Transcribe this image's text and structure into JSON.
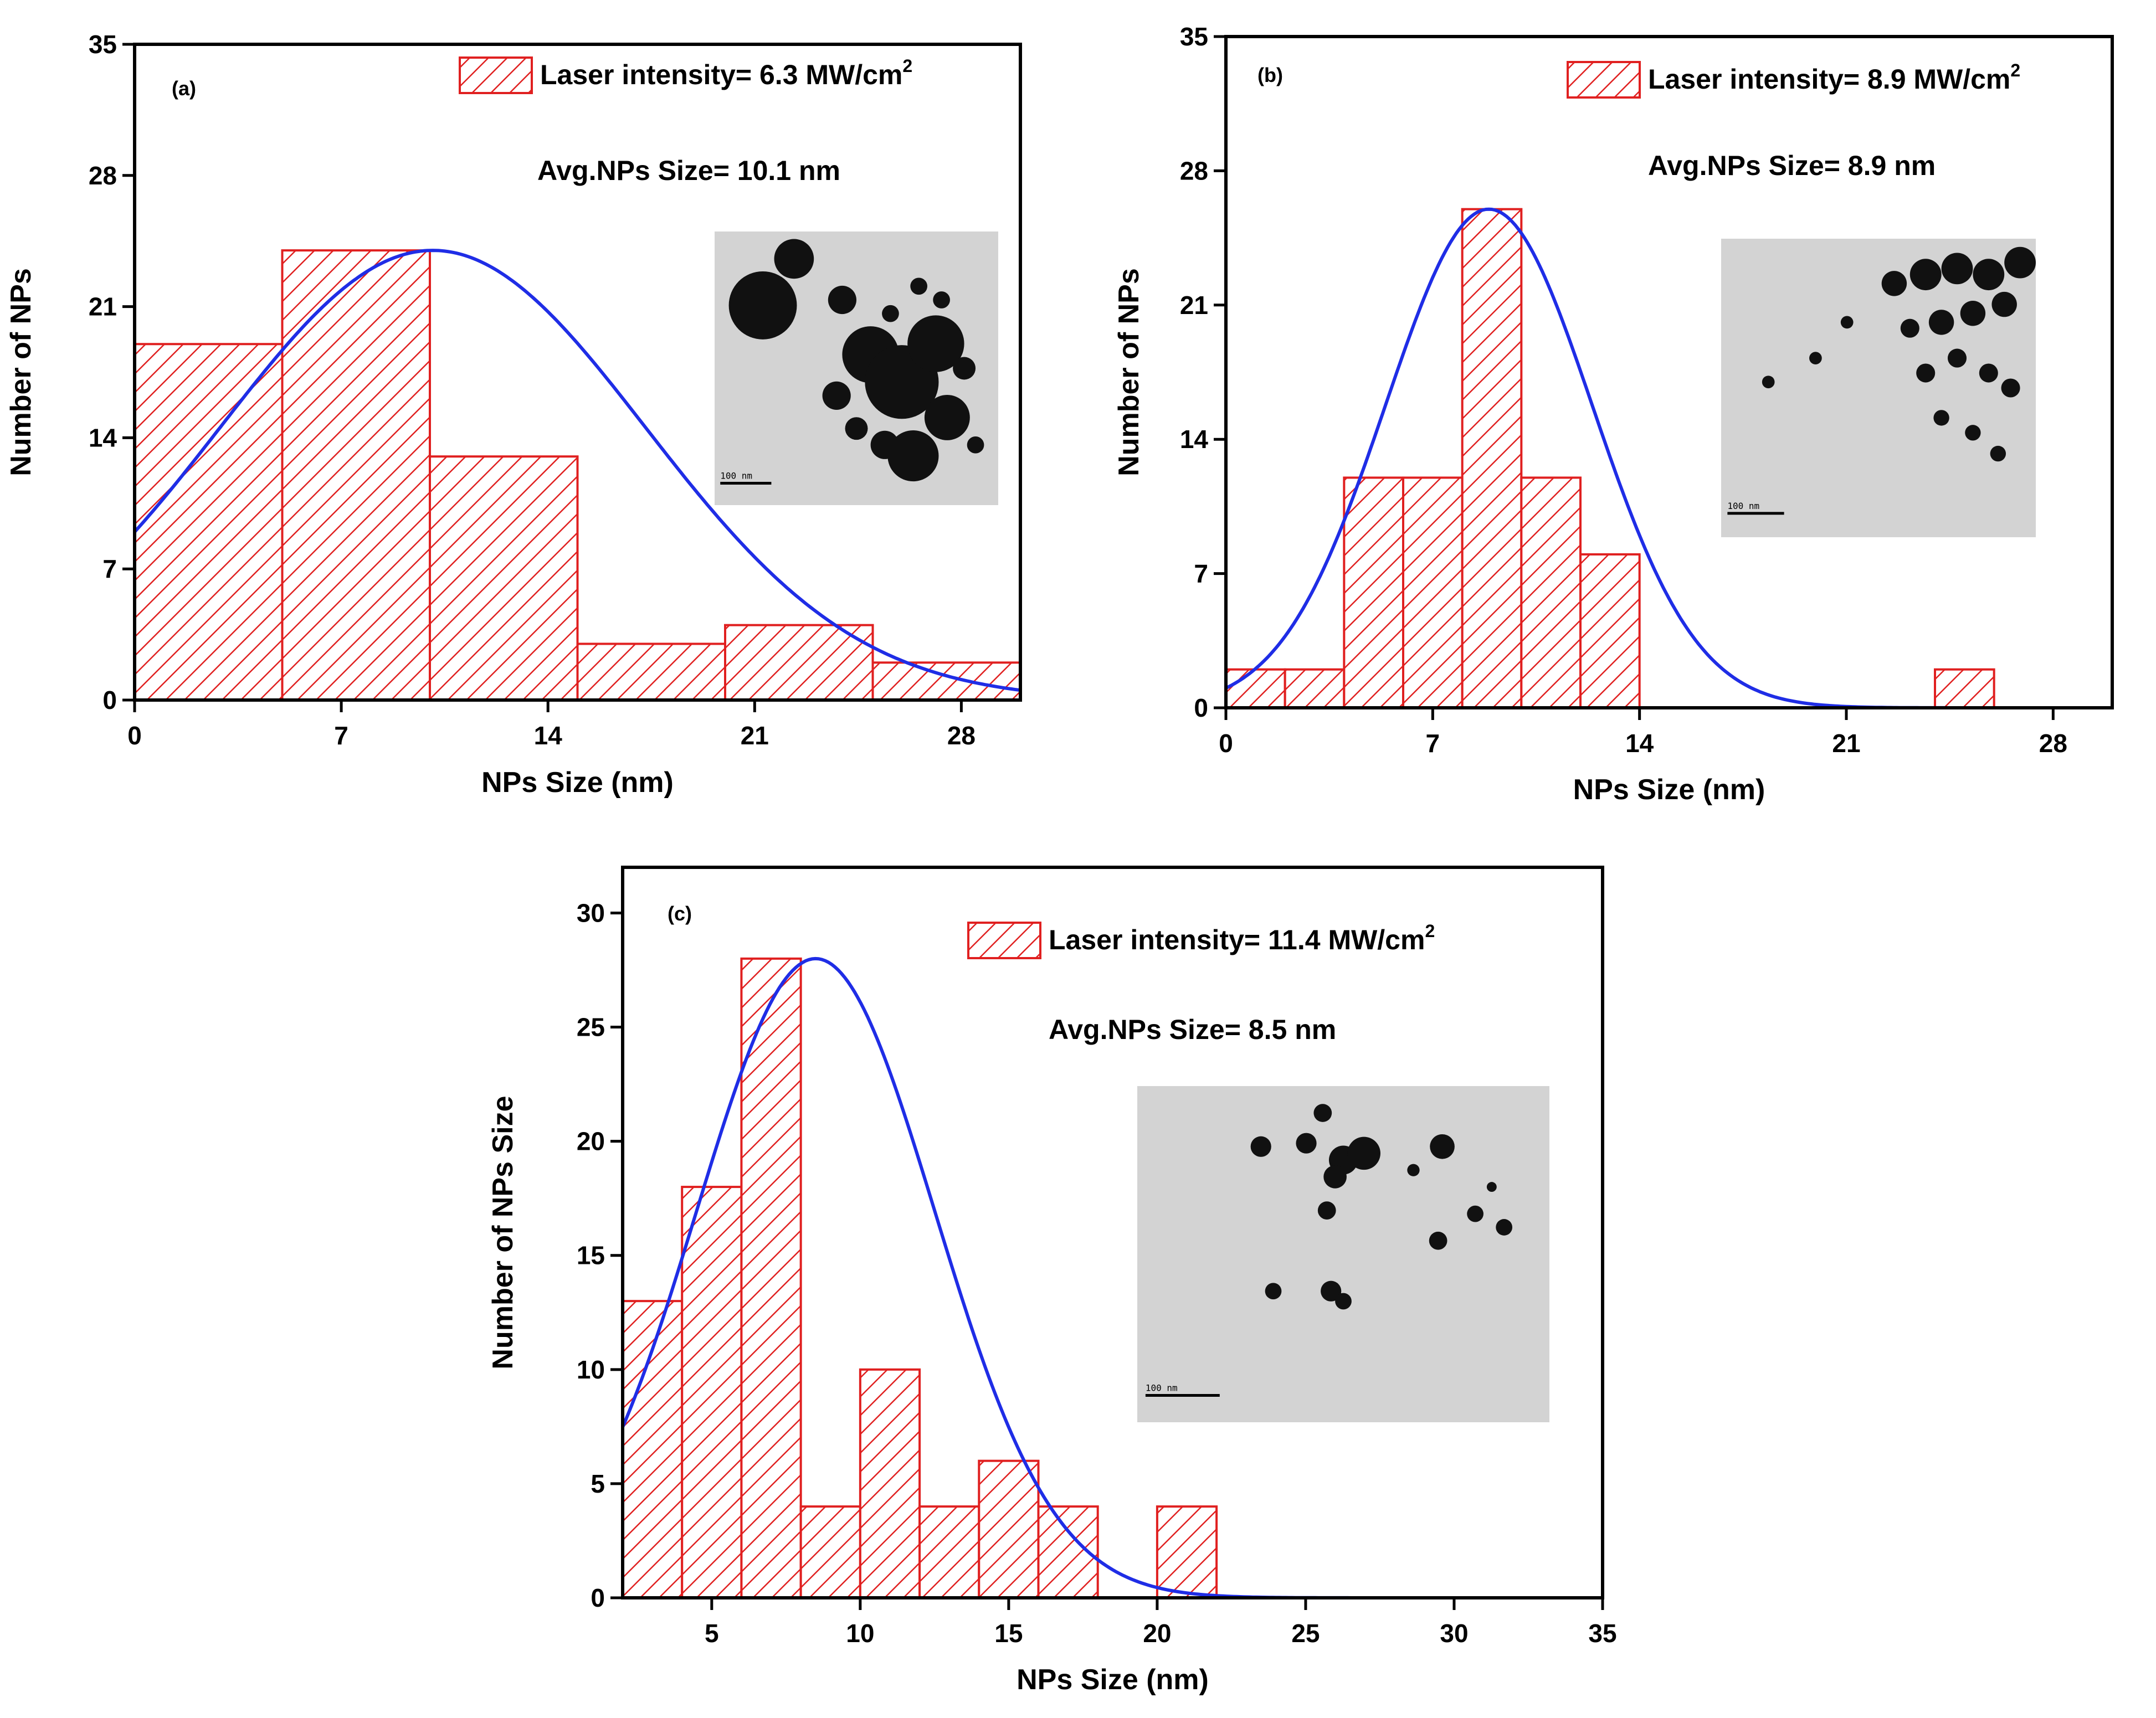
{
  "colors": {
    "bar_stroke": "#e02020",
    "hatch": "#e02020",
    "fit_curve": "#1f2de6",
    "axis": "#000000",
    "tem_background": "#d3d3d3",
    "tem_particles": "#111111"
  },
  "chart_data": [
    {
      "type": "bar",
      "panel": "(a)",
      "xlabel": "NPs Size (nm)",
      "ylabel": "Number of NPs",
      "xlim": [
        0,
        30
      ],
      "ylim": [
        0,
        35
      ],
      "xticks": [
        0,
        7,
        14,
        21,
        28
      ],
      "yticks": [
        0,
        7,
        14,
        21,
        28,
        35
      ],
      "bins": [
        {
          "start": 0,
          "end": 5,
          "count": 19
        },
        {
          "start": 5,
          "end": 10,
          "count": 24
        },
        {
          "start": 10,
          "end": 15,
          "count": 13
        },
        {
          "start": 15,
          "end": 20,
          "count": 3
        },
        {
          "start": 20,
          "end": 25,
          "count": 4
        },
        {
          "start": 25,
          "end": 30,
          "count": 2
        }
      ],
      "fit": {
        "type": "gaussian",
        "peak_x": 10.1,
        "peak_y": 24,
        "sigma": 7.2
      },
      "legend": {
        "label": "Laser intensity= 6.3 MW/cm",
        "superscript": "2",
        "position": "top-right"
      },
      "annotation": "Avg.NPs Size= 10.1 nm",
      "inset": {
        "description": "TEM micrograph",
        "scale_bar_label": "100 nm"
      }
    },
    {
      "type": "bar",
      "panel": "(b)",
      "xlabel": "NPs Size (nm)",
      "ylabel": "Number of NPs",
      "xlim": [
        0,
        30
      ],
      "ylim": [
        0,
        35
      ],
      "xticks": [
        0,
        7,
        14,
        21,
        28
      ],
      "yticks": [
        0,
        7,
        14,
        21,
        28,
        35
      ],
      "bins": [
        {
          "start": 0,
          "end": 2,
          "count": 2
        },
        {
          "start": 2,
          "end": 4,
          "count": 2
        },
        {
          "start": 4,
          "end": 6,
          "count": 12
        },
        {
          "start": 6,
          "end": 8,
          "count": 12
        },
        {
          "start": 8,
          "end": 10,
          "count": 26
        },
        {
          "start": 10,
          "end": 12,
          "count": 12
        },
        {
          "start": 12,
          "end": 14,
          "count": 8
        },
        {
          "start": 24,
          "end": 26,
          "count": 2
        }
      ],
      "fit": {
        "type": "gaussian",
        "peak_x": 8.9,
        "peak_y": 26,
        "sigma": 3.5
      },
      "legend": {
        "label": "Laser intensity= 8.9 MW/cm",
        "superscript": "2",
        "position": "top-right"
      },
      "annotation": "Avg.NPs Size= 8.9 nm",
      "inset": {
        "description": "TEM micrograph",
        "scale_bar_label": "100 nm"
      }
    },
    {
      "type": "bar",
      "panel": "(c)",
      "xlabel": "NPs Size (nm)",
      "ylabel": "Number of NPs Size",
      "xlim": [
        2,
        35
      ],
      "ylim": [
        0,
        32
      ],
      "xticks": [
        5,
        10,
        15,
        20,
        25,
        30,
        35
      ],
      "yticks": [
        0,
        5,
        10,
        15,
        20,
        25,
        30
      ],
      "bins": [
        {
          "start": 2,
          "end": 4,
          "count": 13
        },
        {
          "start": 4,
          "end": 6,
          "count": 18
        },
        {
          "start": 6,
          "end": 8,
          "count": 28
        },
        {
          "start": 8,
          "end": 10,
          "count": 4
        },
        {
          "start": 10,
          "end": 12,
          "count": 10
        },
        {
          "start": 12,
          "end": 14,
          "count": 4
        },
        {
          "start": 14,
          "end": 16,
          "count": 6
        },
        {
          "start": 16,
          "end": 18,
          "count": 4
        },
        {
          "start": 20,
          "end": 22,
          "count": 4
        }
      ],
      "fit": {
        "type": "gaussian",
        "peak_x": 8.5,
        "peak_y": 28,
        "sigma": 4.0
      },
      "legend": {
        "label": "Laser intensity= 11.4 MW/cm",
        "superscript": "2",
        "position": "top-right"
      },
      "annotation": "Avg.NPs Size= 8.5 nm",
      "inset": {
        "description": "TEM micrograph",
        "scale_bar_label": "100 nm"
      }
    }
  ]
}
